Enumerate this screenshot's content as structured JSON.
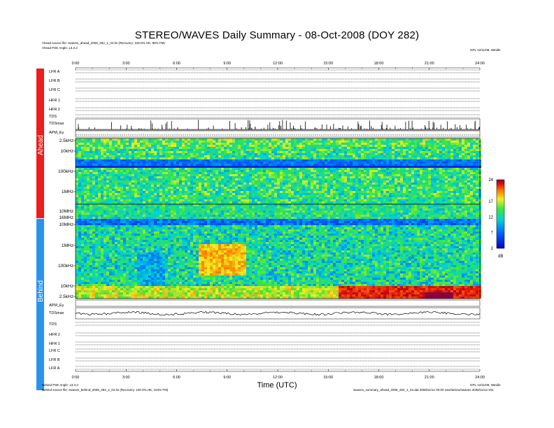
{
  "chart_data": {
    "type": "heatmap",
    "title": "STEREO/WAVES Daily Summary - 08-Oct-2008 (DOY 282)",
    "xlabel": "Time (UTC)",
    "xlim": [
      0,
      24
    ],
    "x_ticks": [
      "0:00",
      "3:00",
      "6:00",
      "9:00",
      "12:00",
      "15:00",
      "18:00",
      "21:00",
      "24:00"
    ],
    "colorbar": {
      "ticks": [
        "24",
        "17",
        "12",
        "7",
        "2"
      ],
      "unit": "dB",
      "range": [
        2,
        24
      ]
    },
    "panels": {
      "ahead": {
        "label": "Ahead",
        "freq_ticks": [
          "2.5kHz",
          "10kHz",
          "100kHz",
          "1MHz",
          "10MHz",
          "16MHz"
        ],
        "rows": [
          "LFR A",
          "LFR B",
          "LFR C",
          "HFR 1",
          "HFR 2",
          "TDS",
          "TDSmax",
          "APM_Ey"
        ]
      },
      "behind": {
        "label": "Behind",
        "freq_ticks": [
          "10MHz",
          "1MHz",
          "100kHz",
          "10kHz",
          "2.5kHz"
        ],
        "rows": [
          "APM_Ey",
          "TDSmax",
          "TDS",
          "HFR 2",
          "HFR 1",
          "LFR C",
          "LFR B",
          "LFR A"
        ]
      }
    }
  },
  "header": {
    "ahead_source": "Ahead source file: swaves_ahead_2008_282_1_04.lin (Recovery: 100.0% HK, 99% FM)",
    "ahead_angle": "Ahead PSE Angle: ±3.3.3",
    "ahead_ref": "GPL 12/11/08, Weidle"
  },
  "footer": {
    "behind_angle": "Behind PSE Angle: ±3.3.3",
    "behind_source": "Behind source file: swaves_behind_2008_282_1_04.lin (Recovery: 100.0% HK, 104% FM)",
    "behind_ref": "GPL 12/11/08, Weidle",
    "proc": "swaves_summary_ahead_2008_282_1_04.dat 2008/11/12 00:00 ssw/stereo/swaves 2008/11/12 v02"
  },
  "colors": {
    "ahead_bar": "#ee1c1c",
    "behind_bar": "#2a93f0"
  }
}
